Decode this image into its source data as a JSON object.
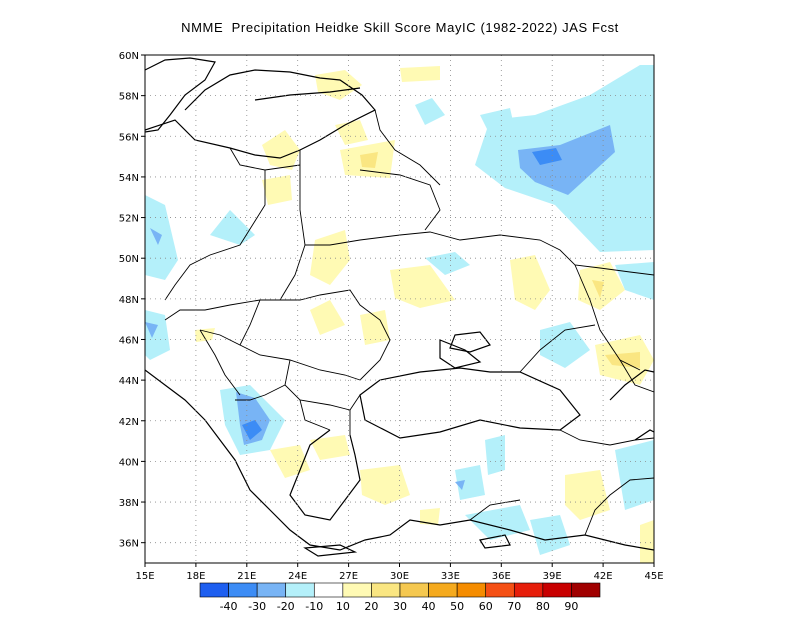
{
  "title": "NMME  Precipitation Heidke Skill Score MayIC (1982-2022) JAS Fcst",
  "map": {
    "lon_range": [
      15,
      45
    ],
    "lat_range": [
      35,
      60
    ],
    "lon_ticks": [
      "15E",
      "18E",
      "21E",
      "24E",
      "27E",
      "30E",
      "33E",
      "36E",
      "39E",
      "42E",
      "45E"
    ],
    "lat_ticks": [
      "36N",
      "38N",
      "40N",
      "42N",
      "44N",
      "46N",
      "48N",
      "50N",
      "52N",
      "54N",
      "56N",
      "58N",
      "60N"
    ],
    "grid": "dotted"
  },
  "colorbar": {
    "labels": [
      "-40",
      "-30",
      "-20",
      "-10",
      "10",
      "20",
      "30",
      "40",
      "50",
      "60",
      "70",
      "80",
      "90"
    ],
    "colors": [
      "#1e5ff0",
      "#3c8cf5",
      "#78b4f5",
      "#b4f0fa",
      "#ffffff",
      "#fffab4",
      "#fae682",
      "#f5c850",
      "#f5aa1e",
      "#f58c00",
      "#f55014",
      "#e61e0a",
      "#c80000",
      "#a00000"
    ]
  },
  "shading": {
    "light_blue": "#b4f0fa",
    "blue": "#78b4f5",
    "mid_blue": "#3c8cf5",
    "light_yellow": "#fffab4",
    "yellow": "#fae682"
  }
}
